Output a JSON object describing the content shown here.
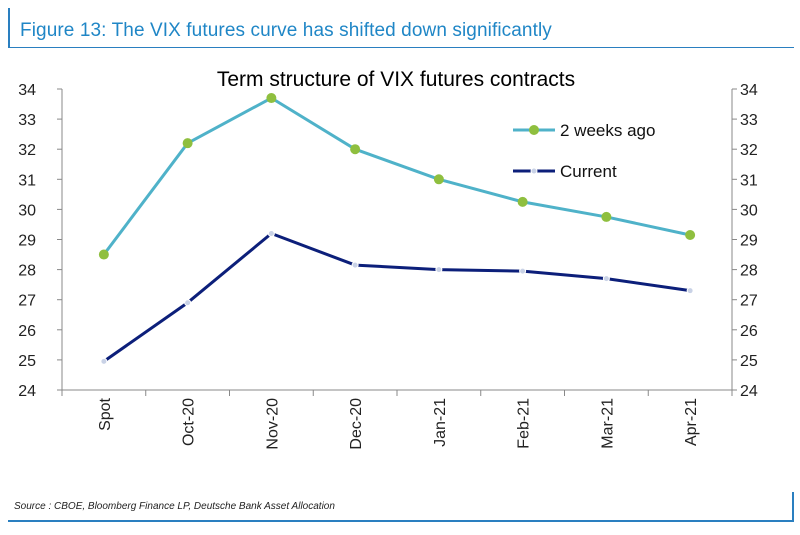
{
  "figure": {
    "title": "Figure 13: The VIX futures curve has shifted down significantly",
    "source": "Source : CBOE, Bloomberg Finance LP, Deutsche Bank Asset Allocation"
  },
  "colors": {
    "accent": "#2a7fc0",
    "series_2w": "#4fb2c9",
    "series_2w_marker": "#8fbf3f",
    "series_current": "#0c1f7a",
    "series_current_marker": "#c9d2e6",
    "axis": "#888888"
  },
  "chart_data": {
    "type": "line",
    "title": "Term structure of VIX futures contracts",
    "categories": [
      "Spot",
      "Oct-20",
      "Nov-20",
      "Dec-20",
      "Jan-21",
      "Feb-21",
      "Mar-21",
      "Apr-21"
    ],
    "series": [
      {
        "name": "2 weeks ago",
        "values": [
          28.5,
          32.2,
          33.7,
          32.0,
          31.0,
          30.25,
          29.75,
          29.15
        ]
      },
      {
        "name": "Current",
        "values": [
          24.95,
          26.9,
          29.2,
          28.15,
          28.0,
          27.95,
          27.7,
          27.3
        ]
      }
    ],
    "ylim": [
      24,
      34
    ],
    "yticks": [
      24,
      25,
      26,
      27,
      28,
      29,
      30,
      31,
      32,
      33,
      34
    ],
    "y2ticks": [
      24,
      25,
      26,
      27,
      28,
      29,
      30,
      31,
      32,
      33,
      34
    ],
    "xlabel": "",
    "ylabel": "",
    "legend_position": "top-right",
    "grid": false
  }
}
